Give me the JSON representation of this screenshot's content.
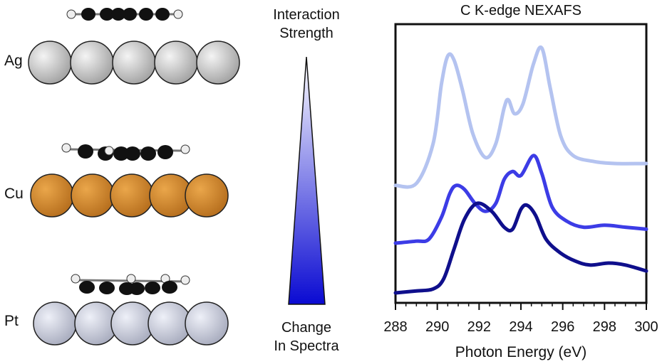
{
  "metals": [
    {
      "label": "Ag",
      "color": "#c8c8c8"
    },
    {
      "label": "Cu",
      "color": "#d48a2c"
    },
    {
      "label": "Pt",
      "color": "#c4c7d6"
    }
  ],
  "arrow_panel": {
    "top_line1": "Interaction",
    "top_line2": "Strength",
    "bottom_line1": "Change",
    "bottom_line2": "In Spectra",
    "gradient_top": "#ffffff",
    "gradient_bottom": "#0a0ad2"
  },
  "chart_data": {
    "type": "line",
    "title": "C K-edge NEXAFS",
    "xlabel": "Photon Energy (eV)",
    "ylabel": "",
    "xlim": [
      288,
      300
    ],
    "x_ticks": [
      288,
      290,
      292,
      294,
      296,
      298,
      300
    ],
    "grid": false,
    "series": [
      {
        "color": "#b4c3f0",
        "x": [
          288,
          289,
          289.8,
          290.2,
          290.5,
          290.8,
          291.2,
          291.7,
          292.3,
          292.8,
          293.2,
          293.4,
          293.7,
          294.1,
          294.6,
          295.0,
          295.4,
          295.9,
          296.5,
          297.5,
          298.5,
          300
        ],
        "y": [
          0.19,
          0.2,
          0.4,
          0.7,
          0.84,
          0.82,
          0.67,
          0.45,
          0.33,
          0.4,
          0.58,
          0.62,
          0.55,
          0.6,
          0.8,
          0.88,
          0.68,
          0.44,
          0.34,
          0.31,
          0.3,
          0.3
        ]
      },
      {
        "color": "#3c3ce6",
        "x": [
          288,
          289.0,
          289.6,
          290.2,
          290.6,
          290.9,
          291.3,
          291.8,
          292.3,
          292.8,
          293.2,
          293.6,
          294.0,
          294.6,
          295.0,
          295.5,
          296.2,
          297.0,
          298.0,
          299.0,
          300
        ],
        "y": [
          -0.1,
          -0.09,
          -0.08,
          0.03,
          0.15,
          0.19,
          0.17,
          0.1,
          0.06,
          0.1,
          0.22,
          0.26,
          0.24,
          0.34,
          0.25,
          0.08,
          0.01,
          -0.02,
          -0.01,
          -0.02,
          -0.03
        ]
      },
      {
        "color": "#0f0f8c",
        "x": [
          288,
          289,
          289.8,
          290.3,
          290.8,
          291.3,
          291.9,
          292.6,
          293.2,
          293.6,
          294.0,
          294.3,
          294.7,
          295.2,
          295.9,
          296.6,
          297.3,
          298.2,
          299.0,
          300
        ],
        "y": [
          -0.35,
          -0.34,
          -0.33,
          -0.28,
          -0.13,
          0.02,
          0.1,
          0.06,
          -0.02,
          -0.03,
          0.07,
          0.09,
          0.04,
          -0.08,
          -0.15,
          -0.19,
          -0.21,
          -0.2,
          -0.21,
          -0.24
        ]
      }
    ]
  }
}
